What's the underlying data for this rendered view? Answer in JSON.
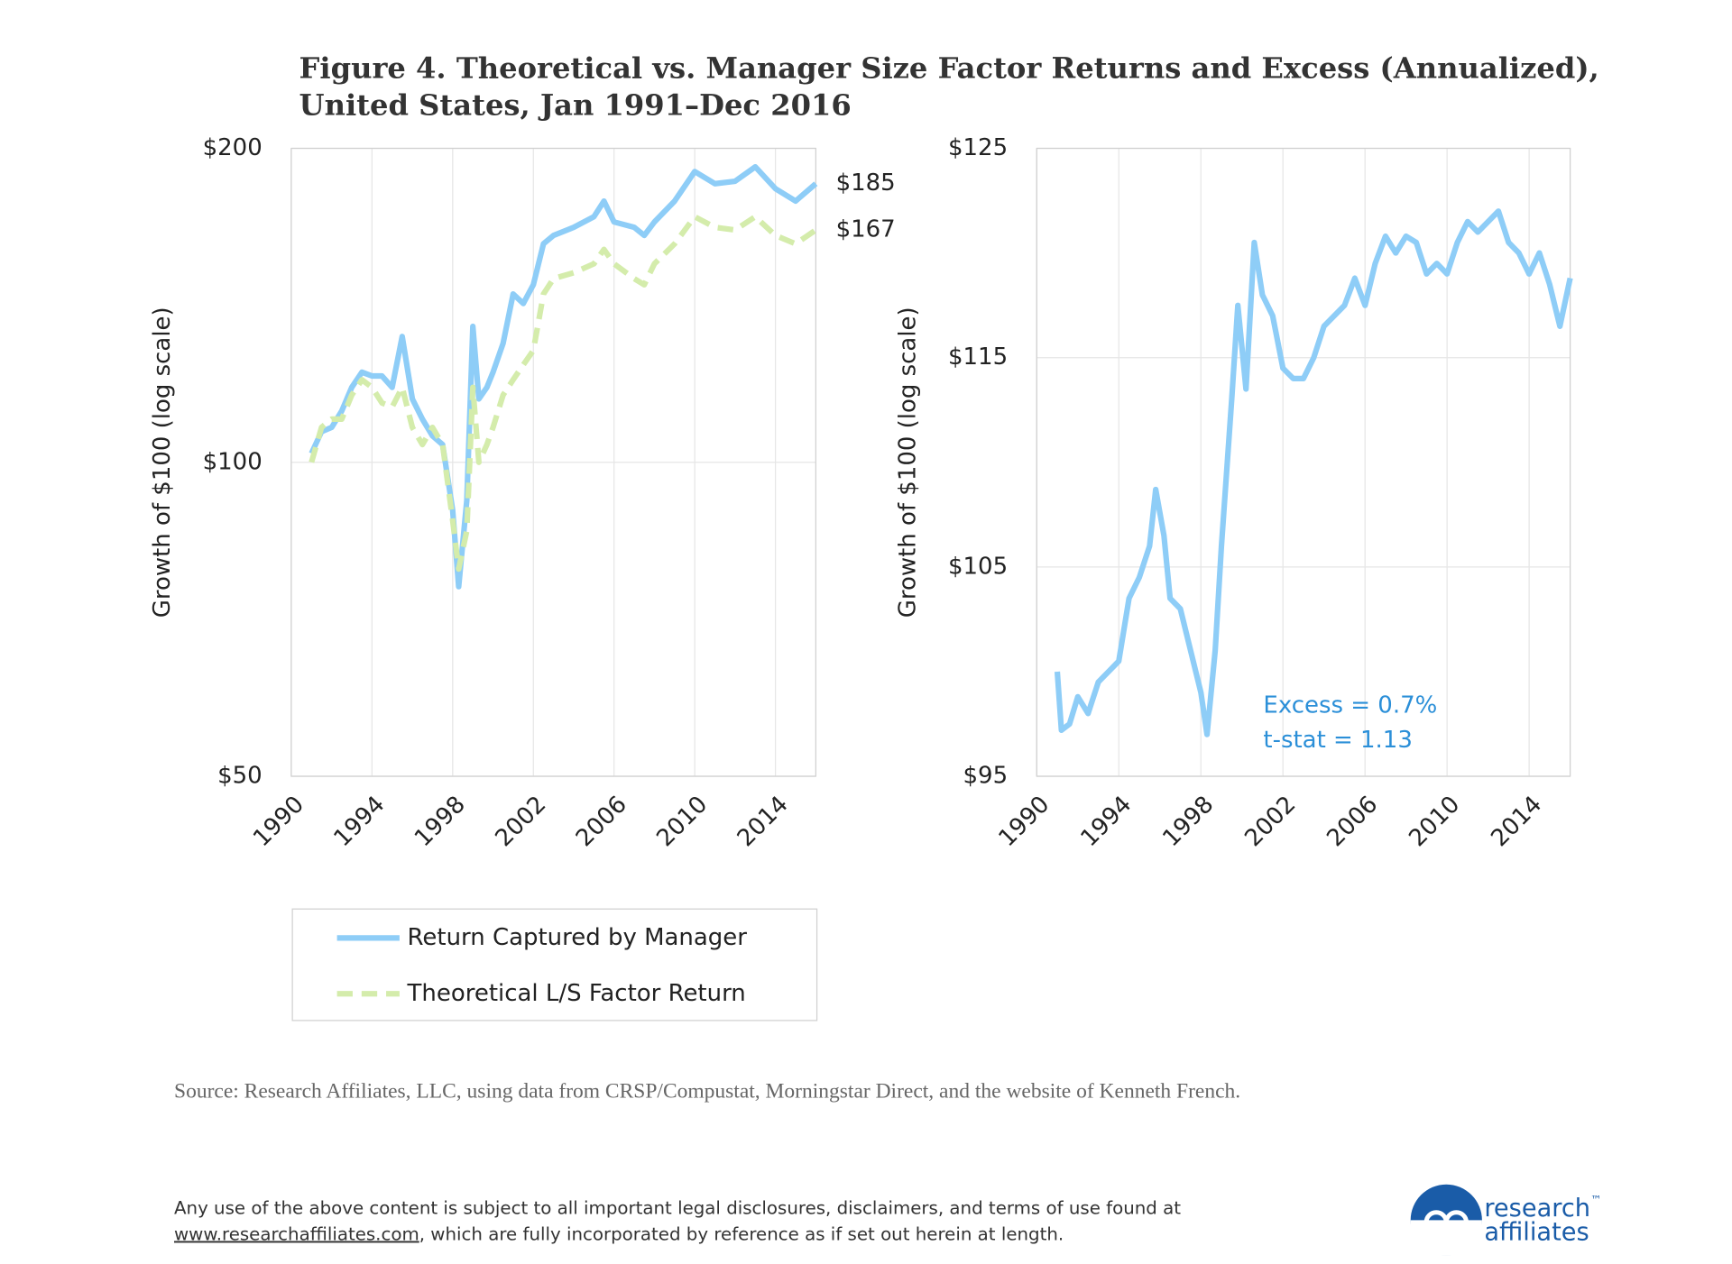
{
  "figure": {
    "title_lines": [
      "Figure 4. Theoretical vs. Manager Size Factor Returns and Excess (Annualized),",
      "United States, Jan 1991–Dec 2016"
    ],
    "source": "Source: Research Affiliates, LLC, using data from CRSP/Compustat, Morningstar Direct, and the website of Kenneth French.",
    "disclaimer_line1": "Any use of the above content is subject to all important legal disclosures, disclaimers, and terms of use found at",
    "disclaimer_link": "www.researchaffiliates.com",
    "disclaimer_rest": ", which are fully incorporated by reference as if set out herein at length.",
    "logo": {
      "line1": "research",
      "mark": "™",
      "line2": "affiliates"
    }
  },
  "chart_data": [
    {
      "type": "line",
      "ylabel": "Growth of $100 (log scale)",
      "log_y": true,
      "grid": true,
      "legend": "bottom",
      "xlim": [
        1990,
        2016
      ],
      "xticks": [
        1990,
        1994,
        1998,
        2002,
        2006,
        2010,
        2014
      ],
      "ylim": [
        50,
        200
      ],
      "yticks": [
        {
          "value": 50,
          "label": "$50"
        },
        {
          "value": 100,
          "label": "$100"
        },
        {
          "value": 200,
          "label": "$200"
        }
      ],
      "x": [
        1991.0,
        1991.5,
        1992.0,
        1992.5,
        1993.0,
        1993.5,
        1994.0,
        1994.5,
        1995.0,
        1995.5,
        1996.0,
        1996.5,
        1997.0,
        1997.5,
        1998.0,
        1998.3,
        1998.7,
        1999.0,
        1999.3,
        1999.7,
        2000.0,
        2000.5,
        2001.0,
        2001.5,
        2002.0,
        2002.5,
        2003.0,
        2004.0,
        2005.0,
        2005.5,
        2006.0,
        2007.0,
        2007.5,
        2008.0,
        2009.0,
        2010.0,
        2011.0,
        2012.0,
        2013.0,
        2014.0,
        2015.0,
        2016.0
      ],
      "series": [
        {
          "name": "Return Captured by Manager",
          "color": "#8ecdf7",
          "dashed": false,
          "values": [
            102,
            107,
            108,
            112,
            118,
            122,
            121,
            121,
            118,
            132,
            115,
            110,
            106,
            104,
            90,
            76,
            92,
            135,
            115,
            118,
            122,
            130,
            145,
            142,
            148,
            162,
            165,
            168,
            172,
            178,
            170,
            168,
            165,
            170,
            178,
            190,
            185,
            186,
            192,
            183,
            178,
            185
          ],
          "end_label": {
            "value": 185,
            "label": "$185"
          }
        },
        {
          "name": "Theoretical L/S Factor Return",
          "color": "#d4ecab",
          "dashed": true,
          "values": [
            100,
            108,
            110,
            110,
            116,
            120,
            118,
            114,
            113,
            118,
            108,
            104,
            108,
            104,
            88,
            79,
            86,
            118,
            100,
            104,
            108,
            116,
            120,
            124,
            128,
            145,
            150,
            152,
            155,
            160,
            155,
            150,
            148,
            155,
            162,
            172,
            168,
            167,
            172,
            165,
            162,
            167
          ],
          "end_label": {
            "value": 167,
            "label": "$167"
          }
        }
      ]
    },
    {
      "type": "line",
      "ylabel": "Growth of $100 (log scale)",
      "log_y": false,
      "grid": true,
      "xlim": [
        1990,
        2016
      ],
      "xticks": [
        1990,
        1994,
        1998,
        2002,
        2006,
        2010,
        2014
      ],
      "ylim": [
        95,
        125
      ],
      "yticks": [
        {
          "value": 95,
          "label": "$95"
        },
        {
          "value": 105,
          "label": "$105"
        },
        {
          "value": 115,
          "label": "$115"
        },
        {
          "value": 125,
          "label": "$125"
        }
      ],
      "x": [
        1991.0,
        1991.2,
        1991.6,
        1992.0,
        1992.5,
        1993.0,
        1993.5,
        1994.0,
        1994.5,
        1995.0,
        1995.5,
        1995.8,
        1996.2,
        1996.5,
        1997.0,
        1997.5,
        1998.0,
        1998.3,
        1998.7,
        1999.0,
        1999.5,
        1999.8,
        2000.2,
        2000.6,
        2001.0,
        2001.5,
        2002.0,
        2002.5,
        2003.0,
        2003.5,
        2004.0,
        2005.0,
        2005.5,
        2006.0,
        2006.5,
        2007.0,
        2007.5,
        2008.0,
        2008.5,
        2009.0,
        2009.5,
        2010.0,
        2010.5,
        2011.0,
        2011.5,
        2012.0,
        2012.5,
        2013.0,
        2013.5,
        2014.0,
        2014.5,
        2015.0,
        2015.5,
        2016.0
      ],
      "series": [
        {
          "color": "#8ecdf7",
          "dashed": false,
          "values": [
            100,
            97.2,
            97.5,
            98.8,
            98,
            99.5,
            100,
            100.5,
            103.5,
            104.5,
            106,
            108.7,
            106.5,
            103.5,
            103,
            101,
            99,
            97,
            101,
            106,
            113,
            117.5,
            113.5,
            120.5,
            118,
            117,
            114.5,
            114,
            114,
            115,
            116.5,
            117.5,
            118.8,
            117.5,
            119.5,
            120.8,
            120,
            120.8,
            120.5,
            119,
            119.5,
            119,
            120.5,
            121.5,
            121,
            121.5,
            122,
            120.5,
            120,
            119,
            120,
            118.5,
            116.5,
            118.8
          ]
        }
      ],
      "annotations": [
        "Excess = 0.7%",
        "t-stat = 1.13"
      ],
      "annotation_color": "#2b8fd8"
    }
  ]
}
